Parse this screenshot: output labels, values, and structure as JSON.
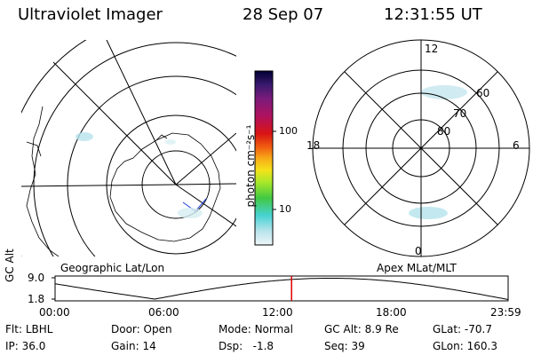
{
  "header": {
    "instrument": "Ultraviolet Imager",
    "date": "28 Sep 07",
    "time": "12:31:55 UT"
  },
  "left_map": {
    "label": "Geographic Lat/Lon"
  },
  "right_map": {
    "label": "Apex MLat/MLT",
    "mlt_labels": [
      "12",
      "18",
      "6",
      "0"
    ],
    "mlat_labels": [
      "60",
      "70",
      "80"
    ]
  },
  "colorbar": {
    "unit_label": "photon cm⁻²s⁻¹",
    "ticks": [
      "100",
      "10"
    ],
    "colors": [
      "#000033",
      "#3a1a6e",
      "#7b1b7b",
      "#b0125e",
      "#d81414",
      "#f06010",
      "#f7a818",
      "#f4e21a",
      "#a8e82a",
      "#42c842",
      "#46d2d2",
      "#b8e4ec",
      "#eef6f8"
    ]
  },
  "timeline": {
    "y_label": "GC Alt",
    "y_ticks": [
      "9.0",
      "1.8"
    ],
    "x_ticks": [
      "00:00",
      "06:00",
      "12:00",
      "18:00",
      "23:59"
    ],
    "marker_fraction": 0.522,
    "marker_color": "#dd0000"
  },
  "footer": {
    "row1": [
      {
        "label": "Flt:",
        "value": "LBHL"
      },
      {
        "label": "Door:",
        "value": "Open"
      },
      {
        "label": "Mode:",
        "value": "Normal"
      },
      {
        "label": "GC Alt:",
        "value": "8.9 Re"
      },
      {
        "label": "GLat:",
        "value": "-70.7"
      }
    ],
    "row2": [
      {
        "label": "IP:",
        "value": "36.0"
      },
      {
        "label": "Gain:",
        "value": "14"
      },
      {
        "label": "Dsp:",
        "value": "  -1.8"
      },
      {
        "label": "Seq:",
        "value": "39"
      },
      {
        "label": "GLon:",
        "value": "160.3"
      }
    ]
  }
}
